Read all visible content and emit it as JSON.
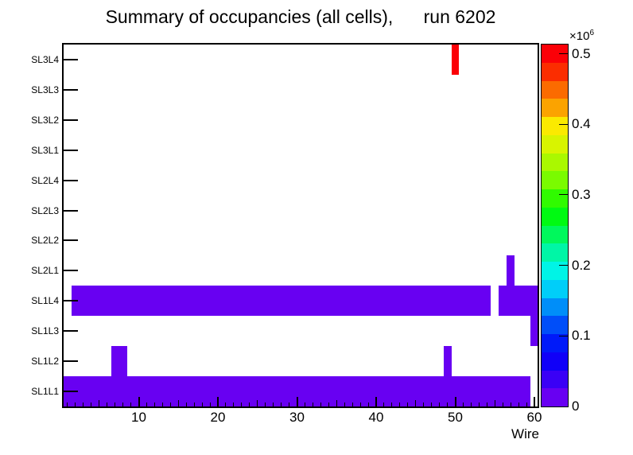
{
  "chart_data": {
    "type": "heatmap",
    "title": "Summary of occupancies (all cells),      run 6202",
    "xlabel": "Wire",
    "grid": false,
    "legend_position": "right-colorbar",
    "x_axis": {
      "min": 0.5,
      "max": 60.5,
      "major_ticks": [
        10,
        20,
        30,
        40,
        50,
        60
      ],
      "minor_tick_step": 1,
      "medium_tick_step": 5
    },
    "y_axis": {
      "labels_bottom_to_top": [
        "SL1L1",
        "SL1L2",
        "SL1L3",
        "SL1L4",
        "SL2L1",
        "SL2L2",
        "SL2L3",
        "SL2L4",
        "SL3L1",
        "SL3L2",
        "SL3L3",
        "SL3L4"
      ]
    },
    "z_axis": {
      "mult_base": "×10",
      "mult_exp": "6",
      "tick_labels": [
        "0",
        "0.1",
        "0.2",
        "0.3",
        "0.4",
        "0.5"
      ],
      "tick_values": [
        0,
        100000,
        200000,
        300000,
        400000,
        500000
      ],
      "max": 513000,
      "n_color_bands": 20
    },
    "palette_colors_bottom_to_top": [
      "#6800f2",
      "#3a00f6",
      "#1000f8",
      "#001af9",
      "#004ef9",
      "#008ef9",
      "#00cef9",
      "#00f4e6",
      "#00f6a6",
      "#00f85c",
      "#00fa12",
      "#30fb00",
      "#7afb00",
      "#aaf800",
      "#d8f400",
      "#fbea00",
      "#fba300",
      "#fb6b00",
      "#fb2d00",
      "#fb0007"
    ],
    "cells": [
      {
        "layer": "SL1L1",
        "wire_from": 1,
        "wire_to": 59,
        "value": 20000
      },
      {
        "layer": "SL1L2",
        "wire_from": 7,
        "wire_to": 8,
        "value": 20000
      },
      {
        "layer": "SL1L2",
        "wire_from": 49,
        "wire_to": 49,
        "value": 20000
      },
      {
        "layer": "SL1L3",
        "wire_from": 60,
        "wire_to": 60,
        "value": 20000
      },
      {
        "layer": "SL1L4",
        "wire_from": 2,
        "wire_to": 54,
        "value": 20000
      },
      {
        "layer": "SL1L4",
        "wire_from": 56,
        "wire_to": 60,
        "value": 20000
      },
      {
        "layer": "SL2L1",
        "wire_from": 57,
        "wire_to": 57,
        "value": 20000
      },
      {
        "layer": "SL3L4",
        "wire_from": 50,
        "wire_to": 50,
        "value": 510000
      }
    ],
    "colors": {
      "frame": "#000000",
      "background": "#ffffff",
      "low_bin": "#6800f2",
      "max_bin": "#fb0007"
    }
  }
}
